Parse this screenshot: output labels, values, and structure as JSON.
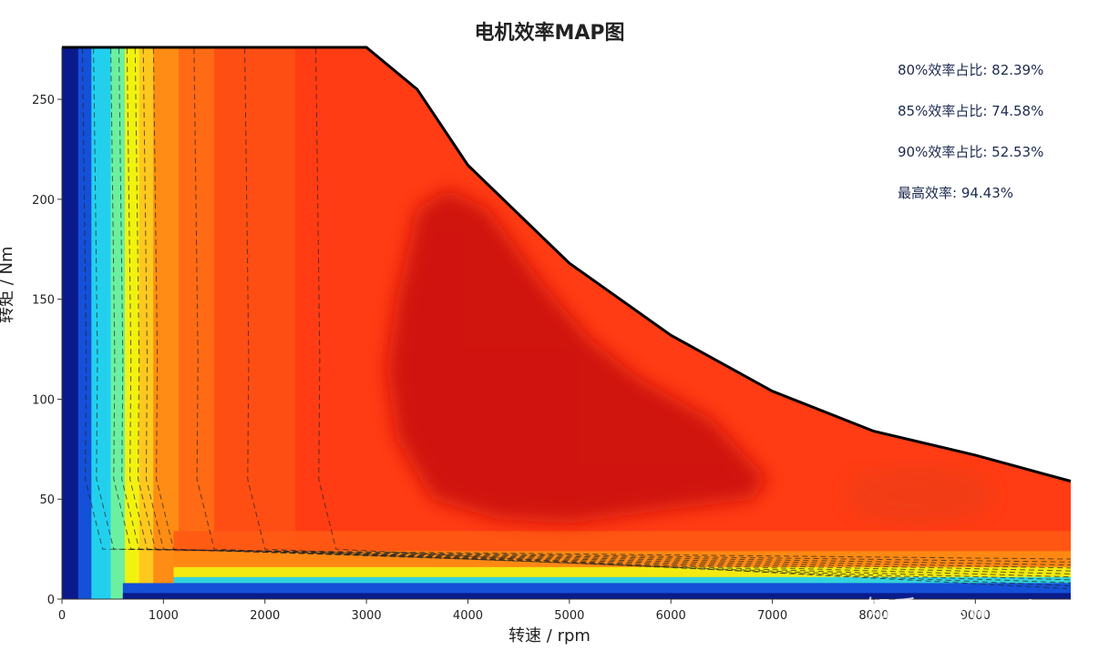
{
  "chart_data": {
    "type": "heatmap",
    "title": "电机效率MAP图",
    "xlabel": "转速 / rpm",
    "ylabel": "转矩 / Nm",
    "xlim": [
      0,
      9940
    ],
    "ylim": [
      0,
      276
    ],
    "x_ticks": [
      0,
      1000,
      2000,
      3000,
      4000,
      5000,
      6000,
      7000,
      8000,
      9000
    ],
    "x_tick_labels": [
      "0",
      "1000",
      "2000",
      "3000",
      "4000",
      "5000",
      "6000",
      "7000",
      "8000",
      "9000"
    ],
    "y_ticks": [
      0,
      50,
      100,
      150,
      200,
      250
    ],
    "y_tick_labels": [
      "0",
      "50",
      "100",
      "150",
      "200",
      "250"
    ],
    "colormap": "jet",
    "contour_levels": [
      50,
      70,
      74,
      77,
      80,
      83,
      85,
      88,
      90,
      91,
      92,
      93
    ],
    "max_torque_envelope": [
      {
        "rpm": 0,
        "torque": 276
      },
      {
        "rpm": 3000,
        "torque": 276
      },
      {
        "rpm": 3500,
        "torque": 255
      },
      {
        "rpm": 4000,
        "torque": 217
      },
      {
        "rpm": 5000,
        "torque": 168
      },
      {
        "rpm": 6000,
        "torque": 132
      },
      {
        "rpm": 7000,
        "torque": 104
      },
      {
        "rpm": 8000,
        "torque": 84
      },
      {
        "rpm": 9000,
        "torque": 72
      },
      {
        "rpm": 9940,
        "torque": 59
      }
    ],
    "peak_region": {
      "rpm": 4000,
      "torque": 125
    },
    "annotations": [
      "80%效率占比: 82.39%",
      "85%效率占比: 74.58%",
      "90%效率占比: 52.53%",
      "最高效率: 94.43%"
    ]
  },
  "colors": {
    "low": "#0a1a8c",
    "mid_low": "#22d0ee",
    "mid": "#f2f210",
    "mid_high": "#ff8c14",
    "high": "#ff3c14",
    "peak": "#c81010"
  },
  "watermark": "知乎 @sword"
}
